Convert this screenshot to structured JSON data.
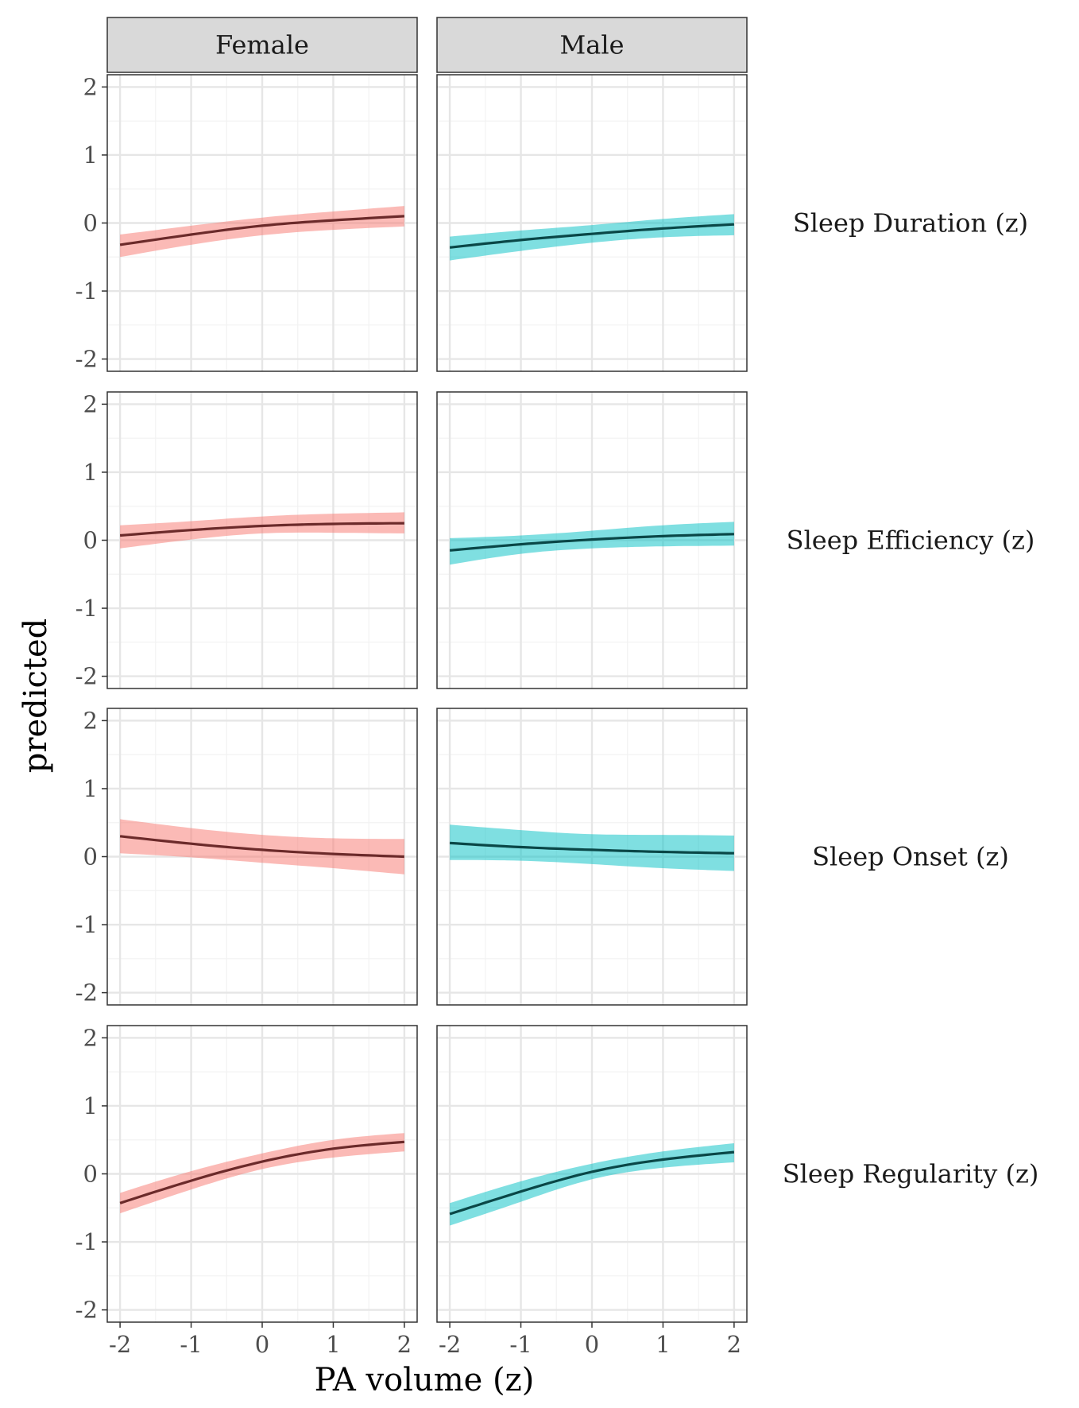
{
  "chart_data": {
    "type": "line",
    "xlabel": "PA volume (z)",
    "ylabel": "predicted",
    "xlim": [
      -2.18,
      2.18
    ],
    "ylim": [
      -2.18,
      2.18
    ],
    "x_ticks": [
      -2,
      -1,
      0,
      1,
      2
    ],
    "y_ticks": [
      -2,
      -1,
      0,
      1,
      2
    ],
    "x_tick_labels": [
      "-2",
      "-1",
      "0",
      "1",
      "2"
    ],
    "y_tick_labels": [
      "-2",
      "-1",
      "0",
      "1",
      "2"
    ],
    "grid": true,
    "columns": [
      "Female",
      "Male"
    ],
    "rows": [
      "Sleep Duration (z)",
      "Sleep Efficiency (z)",
      "Sleep Onset (z)",
      "Sleep Regularity (z)"
    ],
    "colors": {
      "Female": {
        "band": "#F8766D",
        "line": "#6B2A2A"
      },
      "Male": {
        "band": "#00BFC4",
        "line": "#0A4747"
      }
    },
    "panels": [
      {
        "row": "Sleep Duration (z)",
        "column": "Female",
        "x": [
          -2,
          -1,
          0,
          1,
          2
        ],
        "y": [
          -0.32,
          -0.17,
          -0.04,
          0.04,
          0.1
        ],
        "lower": [
          -0.5,
          -0.32,
          -0.18,
          -0.1,
          -0.05
        ],
        "upper": [
          -0.17,
          -0.04,
          0.08,
          0.17,
          0.25
        ]
      },
      {
        "row": "Sleep Duration (z)",
        "column": "Male",
        "x": [
          -2,
          -1,
          0,
          1,
          2
        ],
        "y": [
          -0.36,
          -0.25,
          -0.16,
          -0.08,
          -0.02
        ],
        "lower": [
          -0.55,
          -0.41,
          -0.29,
          -0.21,
          -0.18
        ],
        "upper": [
          -0.2,
          -0.11,
          -0.03,
          0.06,
          0.13
        ]
      },
      {
        "row": "Sleep Efficiency (z)",
        "column": "Female",
        "x": [
          -2,
          -1,
          0,
          1,
          2
        ],
        "y": [
          0.07,
          0.15,
          0.21,
          0.24,
          0.25
        ],
        "lower": [
          -0.12,
          0.01,
          0.1,
          0.11,
          0.1
        ],
        "upper": [
          0.22,
          0.28,
          0.35,
          0.39,
          0.41
        ]
      },
      {
        "row": "Sleep Efficiency (z)",
        "column": "Male",
        "x": [
          -2,
          -1,
          0,
          1,
          2
        ],
        "y": [
          -0.15,
          -0.06,
          0.01,
          0.06,
          0.09
        ],
        "lower": [
          -0.36,
          -0.2,
          -0.12,
          -0.09,
          -0.08
        ],
        "upper": [
          0.03,
          0.07,
          0.14,
          0.22,
          0.27
        ]
      },
      {
        "row": "Sleep Onset (z)",
        "column": "Female",
        "x": [
          -2,
          -1,
          0,
          1,
          2
        ],
        "y": [
          0.3,
          0.19,
          0.1,
          0.04,
          0.0
        ],
        "lower": [
          0.05,
          -0.01,
          -0.09,
          -0.17,
          -0.26
        ],
        "upper": [
          0.55,
          0.42,
          0.32,
          0.27,
          0.26
        ]
      },
      {
        "row": "Sleep Onset (z)",
        "column": "Male",
        "x": [
          -2,
          -1,
          0,
          1,
          2
        ],
        "y": [
          0.2,
          0.14,
          0.1,
          0.07,
          0.05
        ],
        "lower": [
          -0.05,
          -0.06,
          -0.11,
          -0.17,
          -0.21
        ],
        "upper": [
          0.47,
          0.39,
          0.33,
          0.32,
          0.31
        ]
      },
      {
        "row": "Sleep Regularity (z)",
        "column": "Female",
        "x": [
          -2,
          -1,
          0,
          1,
          2
        ],
        "y": [
          -0.43,
          -0.1,
          0.18,
          0.37,
          0.47
        ],
        "lower": [
          -0.58,
          -0.23,
          0.07,
          0.24,
          0.33
        ],
        "upper": [
          -0.28,
          0.04,
          0.3,
          0.5,
          0.6
        ]
      },
      {
        "row": "Sleep Regularity (z)",
        "column": "Male",
        "x": [
          -2,
          -1,
          0,
          1,
          2
        ],
        "y": [
          -0.59,
          -0.26,
          0.03,
          0.21,
          0.32
        ],
        "lower": [
          -0.76,
          -0.41,
          -0.08,
          0.09,
          0.17
        ],
        "upper": [
          -0.43,
          -0.11,
          0.15,
          0.33,
          0.45
        ]
      }
    ]
  }
}
